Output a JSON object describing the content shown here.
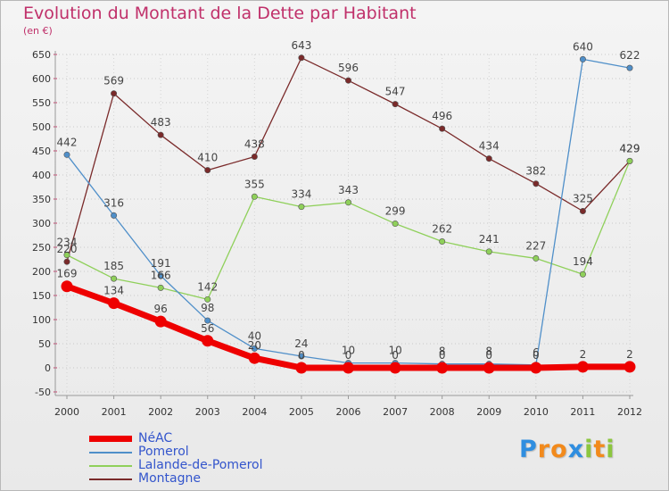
{
  "chart_data": {
    "type": "line",
    "title": "Evolution du Montant de la Dette par Habitant",
    "unit_label": "(en €)",
    "x": [
      "2000",
      "2001",
      "2002",
      "2003",
      "2004",
      "2005",
      "2006",
      "2007",
      "2008",
      "2009",
      "2010",
      "2011",
      "2012"
    ],
    "ylim": [
      -50,
      650
    ],
    "yticks": [
      "-50",
      "0",
      "50",
      "100",
      "150",
      "200",
      "250",
      "300",
      "350",
      "400",
      "450",
      "500",
      "550",
      "600",
      "650"
    ],
    "grid": true,
    "legend_position": "bottom-left",
    "series": [
      {
        "name": "NéAC",
        "color": "#ee0000",
        "values": [
          169,
          134,
          96,
          56,
          20,
          0,
          0,
          0,
          0,
          0,
          0,
          2,
          2
        ],
        "labels": [
          "169",
          "134",
          "96",
          "56",
          "20",
          "0",
          "0",
          "0",
          "0",
          "0",
          "0",
          "2",
          "2"
        ]
      },
      {
        "name": "Pomerol",
        "color": "#4f8fc9",
        "values": [
          442,
          316,
          191,
          98,
          40,
          24,
          10,
          10,
          8,
          8,
          6,
          640,
          622
        ],
        "labels": [
          "442",
          "316",
          "191",
          "98",
          "40",
          "24",
          "10",
          "10",
          "8",
          "8",
          "6",
          "640",
          "622"
        ]
      },
      {
        "name": "Lalande-de-Pomerol",
        "color": "#8fd05a",
        "values": [
          234,
          185,
          166,
          142,
          355,
          334,
          343,
          299,
          262,
          241,
          227,
          194,
          429
        ],
        "labels": [
          "234",
          "185",
          "166",
          "142",
          "355",
          "334",
          "343",
          "299",
          "262",
          "241",
          "227",
          "194",
          "429"
        ]
      },
      {
        "name": "Montagne",
        "color": "#7a2a2a",
        "values": [
          220,
          569,
          483,
          410,
          438,
          643,
          596,
          547,
          496,
          434,
          382,
          325,
          429
        ],
        "labels": [
          "220",
          "569",
          "483",
          "410",
          "438",
          "643",
          "596",
          "547",
          "496",
          "434",
          "382",
          "325",
          "429"
        ]
      }
    ]
  },
  "brand": {
    "letters": [
      "P",
      "r",
      "o",
      "x",
      "i",
      "t",
      "i"
    ],
    "colors": [
      "#2f8ee0",
      "#f28a1c",
      "#f28a1c",
      "#2f8ee0",
      "#8cc63f",
      "#f28a1c",
      "#8cc63f"
    ]
  }
}
